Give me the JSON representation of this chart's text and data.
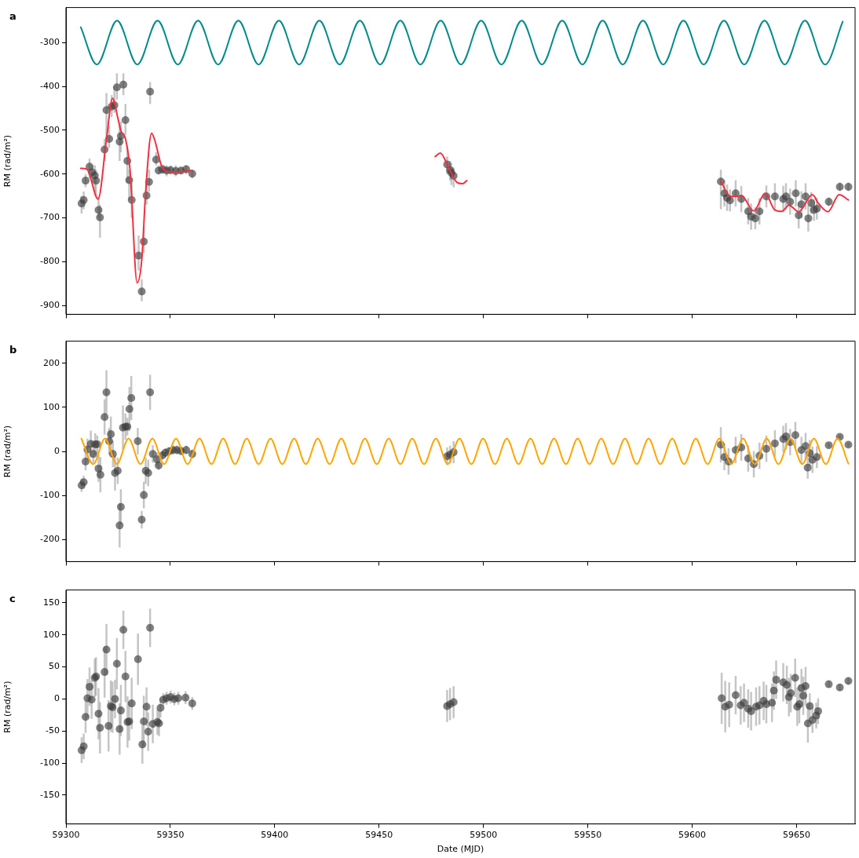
{
  "chart_data": [
    {
      "type": "scatter",
      "title": "a",
      "ylabel": "RM (rad/m²)",
      "xlim": [
        59300,
        59678
      ],
      "xticks": [
        59300,
        59350,
        59400,
        59450,
        59500,
        59550,
        59600,
        59650
      ],
      "ylim": [
        -920,
        -220
      ],
      "yticks": [
        -900,
        -800,
        -700,
        -600,
        -500,
        -400,
        -300
      ],
      "tick_labels": "y",
      "series": [
        {
          "type": "scatter",
          "marker": "circle",
          "color": "#3c3c3c",
          "x": [
            59307.5,
            59308.5,
            59309.4,
            59311.3,
            59312.5,
            59313.8,
            59314.4,
            59315.6,
            59316.3,
            59318.5,
            59319.4,
            59320.7,
            59321.9,
            59323.2,
            59324.4,
            59325.7,
            59326.3,
            59327.5,
            59328.5,
            59329.4,
            59330.3,
            59331.5,
            59334.8,
            59336.3,
            59337.3,
            59338.6,
            59339.8,
            59340.3,
            59343.2,
            59344.4,
            59346.3,
            59348.2,
            59350.1,
            59352.6,
            59355.1,
            59357.6,
            59360.5,
            59482.6,
            59484.0,
            59484.6,
            59485.7,
            59613.7,
            59615.4,
            59616.7,
            59618.1,
            59620.8,
            59623.5,
            59626.8,
            59628.2,
            59630.2,
            59632.2,
            59635.5,
            59639.6,
            59643.6,
            59644.9,
            59646.9,
            59649.6,
            59651.0,
            59652.3,
            59654.3,
            59655.6,
            59657.0,
            59658.3,
            59659.7,
            59665.4,
            59670.7,
            59674.8
          ],
          "values": [
            -667,
            -659,
            -615,
            -583,
            -596,
            -603,
            -615,
            -682,
            -699,
            -544,
            -454,
            -520,
            -446,
            -443,
            -402,
            -526,
            -513,
            -396,
            -477,
            -570,
            -614,
            -659,
            -786,
            -868,
            -754,
            -649,
            -618,
            -412,
            -567,
            -592,
            -589,
            -592,
            -591,
            -593,
            -592,
            -589,
            -599,
            -578,
            -591,
            -597,
            -604,
            -617,
            -644,
            -654,
            -660,
            -644,
            -657,
            -685,
            -697,
            -701,
            -685,
            -651,
            -651,
            -657,
            -651,
            -663,
            -644,
            -694,
            -669,
            -651,
            -701,
            -666,
            -682,
            -679,
            -663,
            -629,
            -629
          ],
          "errors": [
            [
              -690,
              -650
            ],
            [
              -680,
              -640
            ],
            [
              -630,
              -600
            ],
            [
              -610,
              -565
            ],
            [
              -620,
              -580
            ],
            [
              -640,
              -580
            ],
            [
              -650,
              -590
            ],
            [
              -700,
              -650
            ],
            [
              -745,
              -670
            ],
            [
              -570,
              -520
            ],
            [
              -520,
              -415
            ],
            [
              -540,
              -490
            ],
            [
              -470,
              -420
            ],
            [
              -460,
              -400
            ],
            [
              -430,
              -370
            ],
            [
              -570,
              -490
            ],
            [
              -550,
              -480
            ],
            [
              -420,
              -370
            ],
            [
              -510,
              -440
            ],
            [
              -620,
              -540
            ],
            [
              -660,
              -590
            ],
            [
              -700,
              -620
            ],
            [
              -820,
              -740
            ],
            [
              -890,
              -840
            ],
            [
              -780,
              -720
            ],
            [
              -670,
              -620
            ],
            [
              -640,
              -590
            ],
            [
              -440,
              -390
            ],
            [
              -580,
              -550
            ],
            [
              -600,
              -580
            ],
            [
              -600,
              -580
            ],
            [
              -605,
              -580
            ],
            [
              -600,
              -580
            ],
            [
              -605,
              -580
            ],
            [
              -600,
              -585
            ],
            [
              -600,
              -580
            ],
            [
              -610,
              -590
            ],
            [
              -600,
              -560
            ],
            [
              -615,
              -570
            ],
            [
              -625,
              -575
            ],
            [
              -630,
              -585
            ],
            [
              -680,
              -590
            ],
            30,
            30,
            25,
            30,
            30,
            30,
            30,
            25,
            30,
            25,
            30,
            30,
            30,
            30,
            30,
            30,
            30,
            30,
            30,
            25,
            25,
            25,
            10,
            10,
            10
          ]
        },
        {
          "type": "line",
          "color": "#008b8b",
          "x": [
            59307.1,
            59314.8,
            59324.5,
            59334.2,
            59343.9,
            59353.6,
            59363.3,
            59372.9,
            59382.6,
            59392.3,
            59402.0,
            59411.7,
            59421.4,
            59431.1,
            59440.8,
            59450.5,
            59460.2,
            59469.8,
            59479.5,
            59489.2,
            59498.9,
            59508.6,
            59518.3,
            59528.0,
            59537.7,
            59547.4,
            59557.1,
            59566.7,
            59576.4,
            59586.1,
            59595.8,
            59605.5,
            59615.2,
            59624.9,
            59634.6,
            59644.3,
            59654.0,
            59663.6,
            59672.1
          ],
          "values": [
            -265,
            -350,
            -250,
            -350,
            -250,
            -350,
            -250,
            -350,
            -250,
            -350,
            -250,
            -350,
            -250,
            -350,
            -250,
            -350,
            -250,
            -350,
            -250,
            -350,
            -250,
            -350,
            -250,
            -350,
            -250,
            -350,
            -250,
            -350,
            -250,
            -350,
            -250,
            -350,
            -250,
            -350,
            -250,
            -350,
            -250,
            -350,
            -252
          ]
        },
        {
          "type": "line",
          "color": "#f03040",
          "x": [
            59307.1,
            59310.0,
            59315.4,
            59319.4,
            59322.3,
            59325.0,
            59326.3,
            59328.5,
            59330.7,
            59334.1,
            59336.3,
            59338.2,
            59341.0,
            59342.5,
            59345.7,
            59347.6,
            59351.3,
            59360.1,
            59420,
            59476.9,
            59479.3,
            59483.3,
            59487.3,
            59490.0,
            59492.0,
            59550,
            59613.7,
            59618.1,
            59620.8,
            59623.5,
            59629.5,
            59634.9,
            59639.6,
            59642.9,
            59646.3,
            59651.0,
            59657.6,
            59660.3,
            59665.0,
            59670.4,
            59674.8
          ],
          "values": [
            -587,
            -589,
            -657,
            -521,
            -427,
            -475,
            -501,
            -519,
            -591,
            -848,
            -796,
            -639,
            -507,
            -522,
            -580,
            -592,
            -595,
            -592,
            null,
            -560,
            -552,
            -585,
            -619,
            -622,
            -615,
            null,
            -616,
            -651,
            -651,
            -649,
            -684,
            -644,
            -682,
            -685,
            -671,
            -686,
            -647,
            -666,
            -686,
            -647,
            -659
          ]
        }
      ]
    },
    {
      "type": "scatter",
      "title": "b",
      "ylabel": "RM (rad/m²)",
      "xlim": [
        59300,
        59678
      ],
      "xticks": [
        59300,
        59350,
        59400,
        59450,
        59500,
        59550,
        59600,
        59650
      ],
      "ylim": [
        -250,
        250
      ],
      "yticks": [
        -200,
        -100,
        0,
        100,
        200
      ],
      "tick_labels": "y",
      "series": [
        {
          "type": "scatter",
          "marker": "circle",
          "color": "#3c3c3c",
          "x": [
            59307.5,
            59308.5,
            59309.4,
            59310.3,
            59311.9,
            59313.1,
            59314.0,
            59315.0,
            59315.6,
            59316.5,
            59318.5,
            59319.4,
            59320.7,
            59321.5,
            59322.5,
            59323.5,
            59324.8,
            59325.7,
            59326.3,
            59327.3,
            59328.5,
            59329.4,
            59330.4,
            59331.3,
            59334.4,
            59336.3,
            59337.3,
            59338.2,
            59339.4,
            59340.3,
            59341.6,
            59343.6,
            59344.4,
            59346.3,
            59347.6,
            59349.4,
            59351.3,
            59353.2,
            59355.1,
            59357.6,
            59360.5,
            59482.6,
            59484.0,
            59485.7,
            59613.7,
            59615.4,
            59617.4,
            59620.8,
            59623.5,
            59626.8,
            59629.5,
            59632.2,
            59635.5,
            59639.6,
            59643.6,
            59644.9,
            59646.9,
            59649.4,
            59652.3,
            59654.3,
            59655.3,
            59656.3,
            59657.6,
            59659.7,
            59665.4,
            59670.7,
            59674.8
          ],
          "values": [
            -77,
            -70,
            -23,
            4,
            17,
            -6,
            16,
            16,
            -39,
            -53,
            78,
            134,
            23,
            39,
            -6,
            -49,
            -44,
            -168,
            -126,
            54,
            56,
            56,
            96,
            121,
            23,
            -155,
            -99,
            -44,
            -49,
            134,
            -6,
            -18,
            -32,
            -9,
            -3,
            0,
            3,
            3,
            1,
            3,
            -6,
            -11,
            -7,
            -2,
            15,
            -13,
            -23,
            3,
            9,
            -16,
            -29,
            -10,
            6,
            18,
            28,
            34,
            21,
            37,
            3,
            12,
            -37,
            -4,
            -19,
            -13,
            14,
            33,
            15
          ],
          "errors": [
            15,
            15,
            20,
            25,
            30,
            20,
            25,
            20,
            30,
            40,
            40,
            50,
            30,
            40,
            30,
            40,
            30,
            50,
            40,
            50,
            30,
            20,
            50,
            50,
            30,
            20,
            30,
            30,
            30,
            40,
            20,
            15,
            10,
            10,
            10,
            10,
            10,
            10,
            10,
            10,
            10,
            20,
            20,
            25,
            40,
            30,
            30,
            30,
            30,
            30,
            30,
            30,
            30,
            30,
            30,
            30,
            30,
            30,
            30,
            30,
            25,
            30,
            30,
            25,
            5,
            5,
            5
          ]
        },
        {
          "type": "line",
          "color": "#ffa500",
          "x": [
            59307.4,
            59313.1,
            59318.7,
            59324.4,
            59330.0,
            59335.7,
            59341.4,
            59347.0,
            59352.7,
            59358.3,
            59364.0,
            59369.7,
            59375.3,
            59381.0,
            59386.6,
            59392.3,
            59398.0,
            59403.6,
            59409.3,
            59414.9,
            59420.6,
            59426.3,
            59431.9,
            59437.6,
            59443.2,
            59448.9,
            59454.6,
            59460.2,
            59465.9,
            59471.5,
            59477.2,
            59482.9,
            59488.5,
            59494.2,
            59499.8,
            59505.5,
            59511.2,
            59516.8,
            59522.5,
            59528.1,
            59533.8,
            59539.5,
            59545.1,
            59550.8,
            59556.4,
            59562.1,
            59567.8,
            59573.4,
            59579.1,
            59584.7,
            59590.4,
            59596.1,
            59601.7,
            59607.4,
            59613.0,
            59618.7,
            59624.4,
            59630.0,
            59635.7,
            59641.3,
            59647.0,
            59652.7,
            59658.3,
            59664.0,
            59669.6,
            59674.8
          ],
          "values": [
            29,
            -29,
            29,
            -29,
            29,
            -29,
            29,
            -29,
            29,
            -29,
            29,
            -29,
            29,
            -29,
            29,
            -29,
            29,
            -29,
            29,
            -29,
            29,
            -29,
            29,
            -29,
            29,
            -29,
            29,
            -29,
            29,
            -29,
            29,
            -29,
            29,
            -29,
            29,
            -29,
            29,
            -29,
            29,
            -29,
            29,
            -29,
            29,
            -29,
            29,
            -29,
            29,
            -29,
            29,
            -29,
            29,
            -29,
            29,
            -29,
            29,
            -29,
            29,
            -29,
            29,
            -29,
            29,
            -29,
            29,
            -29,
            29,
            -28
          ]
        }
      ]
    },
    {
      "type": "scatter",
      "title": "c",
      "xlabel": "Date (MJD)",
      "ylabel": "RM (rad/m²)",
      "xlim": [
        59300,
        59678
      ],
      "xticks": [
        59300,
        59350,
        59400,
        59450,
        59500,
        59550,
        59600,
        59650
      ],
      "ylim": [
        -195,
        170
      ],
      "yticks": [
        -150,
        -100,
        -50,
        0,
        50,
        100,
        150
      ],
      "series": [
        {
          "type": "scatter",
          "marker": "circle",
          "color": "#3c3c3c",
          "x": [
            59307.5,
            59308.5,
            59309.4,
            59310.3,
            59311.3,
            59312.3,
            59313.8,
            59314.4,
            59315.6,
            59316.3,
            59318.5,
            59319.4,
            59320.4,
            59321.5,
            59322.3,
            59323.5,
            59324.4,
            59325.7,
            59326.3,
            59327.5,
            59328.5,
            59329.5,
            59330.3,
            59331.5,
            59334.5,
            59336.6,
            59337.3,
            59338.6,
            59339.4,
            59340.3,
            59341.6,
            59343.8,
            59344.6,
            59345.3,
            59346.6,
            59348.2,
            59350.1,
            59351.9,
            59353.8,
            59357.3,
            59360.5,
            59482.6,
            59484.0,
            59485.7,
            59614.1,
            59615.8,
            59617.7,
            59620.8,
            59623.2,
            59624.8,
            59626.8,
            59628.2,
            59630.6,
            59632.2,
            59634.2,
            59635.5,
            59638.2,
            59639.1,
            59640.2,
            59643.6,
            59645.3,
            59646.3,
            59647.2,
            59649.3,
            59650.3,
            59651.3,
            59652.3,
            59653.2,
            59654.3,
            59655.4,
            59656.3,
            59657.6,
            59659.4,
            59660.3,
            59665.4,
            59670.7,
            59674.8
          ],
          "values": [
            -80,
            -74,
            -28,
            1,
            19,
            -1,
            33,
            35,
            -23,
            -45,
            42,
            77,
            -42,
            -11,
            -13,
            0,
            55,
            -47,
            -18,
            108,
            35,
            -36,
            -35,
            -7,
            62,
            -71,
            -35,
            -12,
            -51,
            111,
            -39,
            -36,
            -38,
            -14,
            -1,
            1,
            3,
            0,
            1,
            2,
            -7,
            -11,
            -8,
            -5,
            1,
            -12,
            -9,
            6,
            -10,
            -6,
            -15,
            -19,
            -12,
            -10,
            -3,
            -8,
            -6,
            13,
            30,
            26,
            22,
            3,
            9,
            33,
            -12,
            -8,
            17,
            5,
            20,
            -38,
            -11,
            -33,
            -26,
            -19,
            23,
            18,
            28
          ],
          "errors": [
            20,
            20,
            25,
            30,
            30,
            30,
            30,
            30,
            40,
            40,
            40,
            40,
            40,
            40,
            40,
            30,
            40,
            40,
            40,
            30,
            40,
            40,
            30,
            40,
            40,
            30,
            40,
            30,
            30,
            30,
            30,
            20,
            20,
            15,
            10,
            10,
            10,
            10,
            10,
            10,
            10,
            25,
            25,
            25,
            40,
            40,
            35,
            30,
            30,
            30,
            30,
            30,
            30,
            30,
            30,
            30,
            30,
            30,
            30,
            30,
            30,
            30,
            30,
            30,
            30,
            30,
            30,
            30,
            30,
            30,
            20,
            20,
            20,
            20,
            5,
            5,
            5
          ]
        }
      ]
    }
  ]
}
